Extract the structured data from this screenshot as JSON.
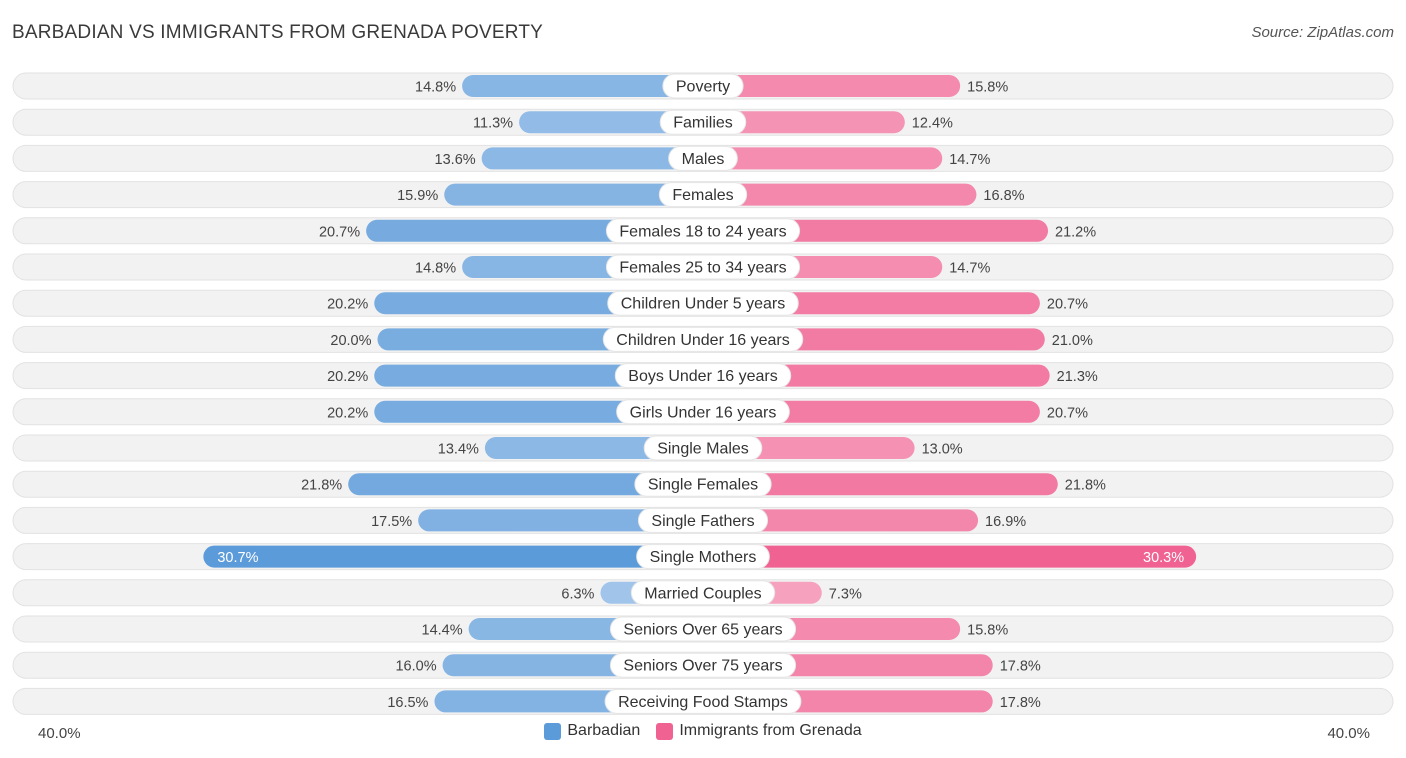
{
  "header": {
    "title": "BARBADIAN VS IMMIGRANTS FROM GRENADA POVERTY",
    "source": "Source: ZipAtlas.com"
  },
  "colors": {
    "left": "#6fa8dc",
    "left_strong": "#5b9bd9",
    "right": "#f589ad",
    "right_strong": "#f06292",
    "track": "#eeeeee"
  },
  "chart_data": {
    "type": "bar",
    "orientation": "horizontal-diverging",
    "title": "BARBADIAN VS IMMIGRANTS FROM GRENADA POVERTY",
    "xlim": [
      -40,
      40
    ],
    "axis_min_label": "40.0%",
    "axis_max_label": "40.0%",
    "categories": [
      "Poverty",
      "Families",
      "Males",
      "Females",
      "Females 18 to 24 years",
      "Females 25 to 34 years",
      "Children Under 5 years",
      "Children Under 16 years",
      "Boys Under 16 years",
      "Girls Under 16 years",
      "Single Males",
      "Single Females",
      "Single Fathers",
      "Single Mothers",
      "Married Couples",
      "Seniors Over 65 years",
      "Seniors Over 75 years",
      "Receiving Food Stamps"
    ],
    "series": [
      {
        "name": "Barbadian",
        "values": [
          14.8,
          11.3,
          13.6,
          15.9,
          20.7,
          14.8,
          20.2,
          20.0,
          20.2,
          20.2,
          13.4,
          21.8,
          17.5,
          30.7,
          6.3,
          14.4,
          16.0,
          16.5
        ],
        "labels": [
          "14.8%",
          "11.3%",
          "13.6%",
          "15.9%",
          "20.7%",
          "14.8%",
          "20.2%",
          "20.0%",
          "20.2%",
          "20.2%",
          "13.4%",
          "21.8%",
          "17.5%",
          "30.7%",
          "6.3%",
          "14.4%",
          "16.0%",
          "16.5%"
        ]
      },
      {
        "name": "Immigrants from Grenada",
        "values": [
          15.8,
          12.4,
          14.7,
          16.8,
          21.2,
          14.7,
          20.7,
          21.0,
          21.3,
          20.7,
          13.0,
          21.8,
          16.9,
          30.3,
          7.3,
          15.8,
          17.8,
          17.8
        ],
        "labels": [
          "15.8%",
          "12.4%",
          "14.7%",
          "16.8%",
          "21.2%",
          "14.7%",
          "20.7%",
          "21.0%",
          "21.3%",
          "20.7%",
          "13.0%",
          "21.8%",
          "16.9%",
          "30.3%",
          "7.3%",
          "15.8%",
          "17.8%",
          "17.8%"
        ]
      }
    ],
    "legend": [
      "Barbadian",
      "Immigrants from Grenada"
    ],
    "legend_position": "bottom-center"
  }
}
